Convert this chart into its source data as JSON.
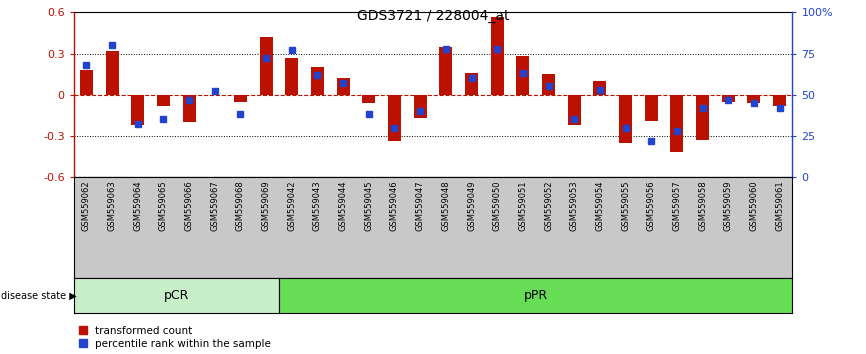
{
  "title": "GDS3721 / 228004_at",
  "samples": [
    "GSM559062",
    "GSM559063",
    "GSM559064",
    "GSM559065",
    "GSM559066",
    "GSM559067",
    "GSM559068",
    "GSM559069",
    "GSM559042",
    "GSM559043",
    "GSM559044",
    "GSM559045",
    "GSM559046",
    "GSM559047",
    "GSM559048",
    "GSM559049",
    "GSM559050",
    "GSM559051",
    "GSM559052",
    "GSM559053",
    "GSM559054",
    "GSM559055",
    "GSM559056",
    "GSM559057",
    "GSM559058",
    "GSM559059",
    "GSM559060",
    "GSM559061"
  ],
  "red_values": [
    0.18,
    0.32,
    -0.22,
    -0.08,
    -0.2,
    0.0,
    -0.05,
    0.42,
    0.27,
    0.2,
    0.12,
    -0.06,
    -0.34,
    -0.17,
    0.35,
    0.16,
    0.57,
    0.28,
    0.15,
    -0.22,
    0.1,
    -0.35,
    -0.19,
    -0.42,
    -0.33,
    -0.05,
    -0.06,
    -0.08
  ],
  "blue_percentiles": [
    68,
    80,
    32,
    35,
    47,
    52,
    38,
    72,
    77,
    62,
    57,
    38,
    30,
    40,
    78,
    60,
    78,
    63,
    55,
    35,
    53,
    30,
    22,
    28,
    42,
    47,
    45,
    42
  ],
  "group_labels": [
    "pCR",
    "pPR"
  ],
  "group_split": 8,
  "pCR_color": "#c8f0c8",
  "pPR_color": "#66dd55",
  "ylim": [
    -0.6,
    0.6
  ],
  "yticks": [
    -0.6,
    -0.3,
    0.0,
    0.3,
    0.6
  ],
  "y2ticks": [
    0,
    25,
    50,
    75,
    100
  ],
  "y2tick_labels": [
    "0",
    "25",
    "50",
    "75",
    "100%"
  ],
  "red_color": "#bb1100",
  "blue_color": "#2244cc",
  "background_color": "#ffffff",
  "tick_bg_color": "#c8c8c8",
  "legend_red": "transformed count",
  "legend_blue": "percentile rank within the sample",
  "disease_state_label": "disease state",
  "bar_width": 0.5,
  "blue_marker_size": 5
}
